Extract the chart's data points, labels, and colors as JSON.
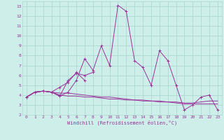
{
  "xlabel": "Windchill (Refroidissement éolien,°C)",
  "background_color": "#ceeee9",
  "grid_color": "#aed8d3",
  "line_color": "#993399",
  "x_hours": [
    0,
    1,
    2,
    3,
    4,
    5,
    6,
    7,
    8,
    9,
    10,
    11,
    12,
    13,
    14,
    15,
    16,
    17,
    18,
    19,
    20,
    21,
    22,
    23
  ],
  "series1": [
    3.8,
    4.3,
    4.4,
    4.3,
    3.9,
    4.3,
    5.5,
    7.7,
    6.5,
    9.0,
    7.0,
    13.1,
    12.5,
    7.5,
    6.8,
    5.0,
    8.5,
    7.5,
    5.0,
    2.5,
    3.0,
    3.8,
    4.0,
    2.5
  ],
  "series2": [
    3.8,
    4.3,
    4.4,
    4.3,
    3.9,
    5.5,
    6.2,
    6.0,
    6.3,
    null,
    null,
    null,
    null,
    null,
    null,
    null,
    null,
    null,
    null,
    null,
    null,
    null,
    null,
    null
  ],
  "series3": [
    3.8,
    4.3,
    4.4,
    4.3,
    4.8,
    5.3,
    6.3,
    5.5,
    null,
    null,
    null,
    null,
    null,
    null,
    null,
    null,
    null,
    null,
    null,
    null,
    null,
    null,
    null,
    null
  ],
  "flat_line1": [
    3.8,
    4.3,
    4.4,
    4.3,
    4.2,
    4.2,
    4.1,
    4.0,
    3.9,
    3.8,
    3.8,
    3.7,
    3.6,
    3.5,
    3.5,
    3.4,
    3.4,
    3.3,
    3.3,
    3.2,
    3.2,
    3.3,
    3.4,
    3.4
  ],
  "flat_line2": [
    3.8,
    4.3,
    4.4,
    4.3,
    4.0,
    3.9,
    3.9,
    3.8,
    3.8,
    3.7,
    3.6,
    3.6,
    3.5,
    3.5,
    3.4,
    3.4,
    3.3,
    3.3,
    3.2,
    3.1,
    3.1,
    3.1,
    3.1,
    3.1
  ],
  "ylim": [
    2,
    13.5
  ],
  "yticks": [
    2,
    3,
    4,
    5,
    6,
    7,
    8,
    9,
    10,
    11,
    12,
    13
  ],
  "xticks": [
    0,
    1,
    2,
    3,
    4,
    5,
    6,
    7,
    8,
    9,
    10,
    11,
    12,
    13,
    14,
    15,
    16,
    17,
    18,
    19,
    20,
    21,
    22,
    23
  ]
}
